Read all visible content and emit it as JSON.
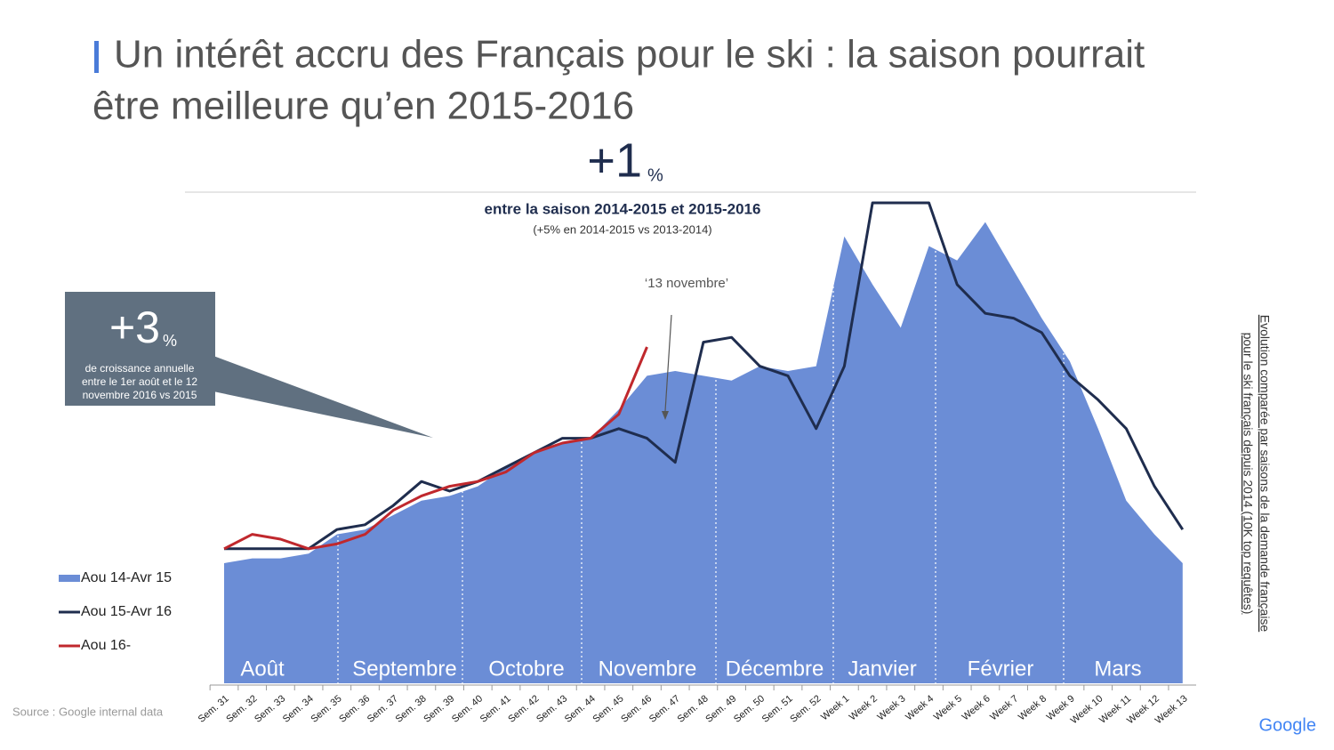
{
  "title_lines": [
    "Un intérêt accru des Français pour le ski : la saison pourrait",
    "être meilleure qu’en 2015-2016"
  ],
  "chart_data": {
    "type": "area_line",
    "categories": [
      "Sem. 31",
      "Sem. 32",
      "Sem. 33",
      "Sem. 34",
      "Sem. 35",
      "Sem. 36",
      "Sem. 37",
      "Sem. 38",
      "Sem. 39",
      "Sem. 40",
      "Sem. 41",
      "Sem. 42",
      "Sem. 43",
      "Sem. 44",
      "Sem. 45",
      "Sem. 46",
      "Sem. 47",
      "Sem. 48",
      "Sem. 49",
      "Sem. 50",
      "Sem. 51",
      "Sem. 52",
      "Week 1",
      "Week 2",
      "Week 3",
      "Week 4",
      "Week 5",
      "Week 6",
      "Week 7",
      "Week 8",
      "Week 9",
      "Week 10",
      "Week 11",
      "Week 12",
      "Week 13"
    ],
    "months": [
      "Août",
      "Septembre",
      "Octobre",
      "Novembre",
      "Décembre",
      "Janvier",
      "Février",
      "Mars"
    ],
    "ylim": [
      0,
      100
    ],
    "legend": "left",
    "series": [
      {
        "name": "Aou 14-Avr 15",
        "color": "#6b8dd6",
        "kind": "area",
        "values": [
          25,
          26,
          26,
          27,
          31,
          32,
          35,
          38,
          39,
          41,
          45,
          48,
          50,
          51,
          57,
          64,
          65,
          64,
          63,
          66,
          65,
          66,
          93,
          83,
          74,
          91,
          88,
          96,
          86,
          76,
          67,
          53,
          38,
          31,
          25
        ]
      },
      {
        "name": "Aou 15-Avr 16",
        "color": "#1f2d4e",
        "kind": "line",
        "values": [
          28,
          28,
          28,
          28,
          32,
          33,
          37,
          42,
          40,
          42,
          45,
          48,
          51,
          51,
          53,
          51,
          46,
          71,
          72,
          66,
          64,
          53,
          66,
          100,
          100,
          100,
          83,
          77,
          76,
          73,
          64,
          59,
          53,
          41,
          32
        ]
      },
      {
        "name": "Aou 16-",
        "color": "#c0282d",
        "kind": "line",
        "values": [
          28,
          31,
          30,
          28,
          29,
          31,
          36,
          39,
          41,
          42,
          44,
          48,
          50,
          51,
          56,
          70,
          null,
          null,
          null,
          null,
          null,
          null,
          null,
          null,
          null,
          null,
          null,
          null,
          null,
          null,
          null,
          null,
          null,
          null,
          null
        ]
      }
    ],
    "annotations": {
      "headline_value": "+1",
      "headline_unit": "%",
      "headline_text": "entre la saison 2014-2015 et 2015-2016",
      "headline_sub": "(+5% en 2014-2015 vs 2013-2014)",
      "event": "‘13 novembre’",
      "box_value": "+3",
      "box_unit": "%",
      "box_text": [
        "de croissance annuelle",
        "entre le 1er août et le 12",
        "novembre 2016 vs 2015"
      ],
      "side_note": [
        "Evolution comparée par saisons de la demande française",
        "pour le ski français depuis 2014 (10K top requêtes)"
      ]
    }
  },
  "source": "Source : Google internal data",
  "logo": "Google"
}
